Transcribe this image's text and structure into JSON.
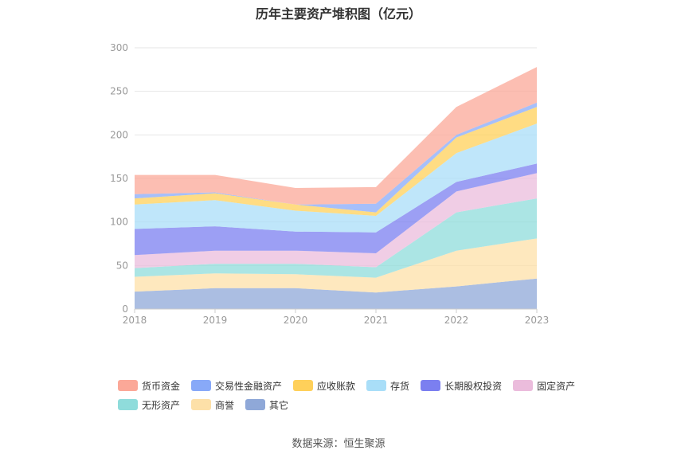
{
  "title": "历年主要资产堆积图（亿元）",
  "source": "数据来源：恒生聚源",
  "chart_data": {
    "type": "area",
    "stacked": true,
    "categories": [
      "2018",
      "2019",
      "2020",
      "2021",
      "2022",
      "2023"
    ],
    "ylim": [
      0,
      300
    ],
    "yticks": [
      "0",
      "50",
      "100",
      "150",
      "200",
      "250",
      "300"
    ],
    "grid": true,
    "legend_position": "bottom",
    "series": [
      {
        "name": "其它",
        "color": "#8fa8d8",
        "values": [
          20,
          24,
          24,
          19,
          26,
          35
        ]
      },
      {
        "name": "商誉",
        "color": "#fde0a8",
        "values": [
          17,
          17,
          16,
          17,
          41,
          46
        ]
      },
      {
        "name": "无形资产",
        "color": "#8fdcdb",
        "values": [
          10,
          11,
          12,
          12,
          44,
          46
        ]
      },
      {
        "name": "固定资产",
        "color": "#ebbcdc",
        "values": [
          15,
          15,
          15,
          16,
          24,
          29
        ]
      },
      {
        "name": "长期股权投资",
        "color": "#7b7ff0",
        "values": [
          30,
          28,
          22,
          24,
          11,
          11
        ]
      },
      {
        "name": "存货",
        "color": "#a9def8",
        "values": [
          28,
          30,
          24,
          19,
          33,
          46
        ]
      },
      {
        "name": "应收账款",
        "color": "#ffd05a",
        "values": [
          7,
          8,
          7,
          4,
          18,
          19
        ]
      },
      {
        "name": "交易性金融资产",
        "color": "#88a9f8",
        "values": [
          5,
          1,
          0,
          10,
          3,
          5
        ]
      },
      {
        "name": "货币资金",
        "color": "#fba898",
        "values": [
          22,
          20,
          19,
          19,
          32,
          41
        ]
      }
    ],
    "legend_order": [
      "货币资金",
      "交易性金融资产",
      "应收账款",
      "存货",
      "长期股权投资",
      "固定资产",
      "无形资产",
      "商誉",
      "其它"
    ]
  }
}
